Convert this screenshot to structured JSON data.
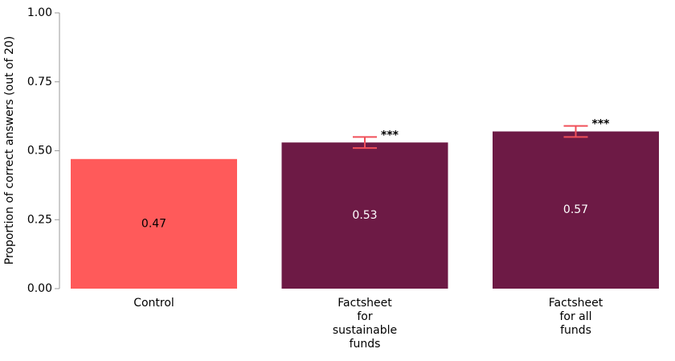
{
  "chart_data": {
    "type": "bar",
    "y_label": "Proportion of correct answers (out of 20)",
    "categories": [
      [
        "Control"
      ],
      [
        "Factsheet",
        "for",
        "sustainable",
        "funds"
      ],
      [
        "Factsheet",
        "for all",
        "funds"
      ]
    ],
    "values": [
      0.47,
      0.53,
      0.57
    ],
    "errors": [
      null,
      0.02,
      0.02
    ],
    "annotations": [
      null,
      "***",
      "***"
    ],
    "colors": [
      "#ff5a5a",
      "#6d1a45",
      "#6d1a45"
    ],
    "error_color": "#f0505a",
    "ylim": [
      0,
      1
    ],
    "yticks": [
      {
        "value": 0,
        "label": "0.00"
      },
      {
        "value": 0.25,
        "label": "0.25"
      },
      {
        "value": 0.5,
        "label": "0.50"
      },
      {
        "value": 0.75,
        "label": "0.75"
      },
      {
        "value": 1,
        "label": "1.00"
      }
    ]
  }
}
